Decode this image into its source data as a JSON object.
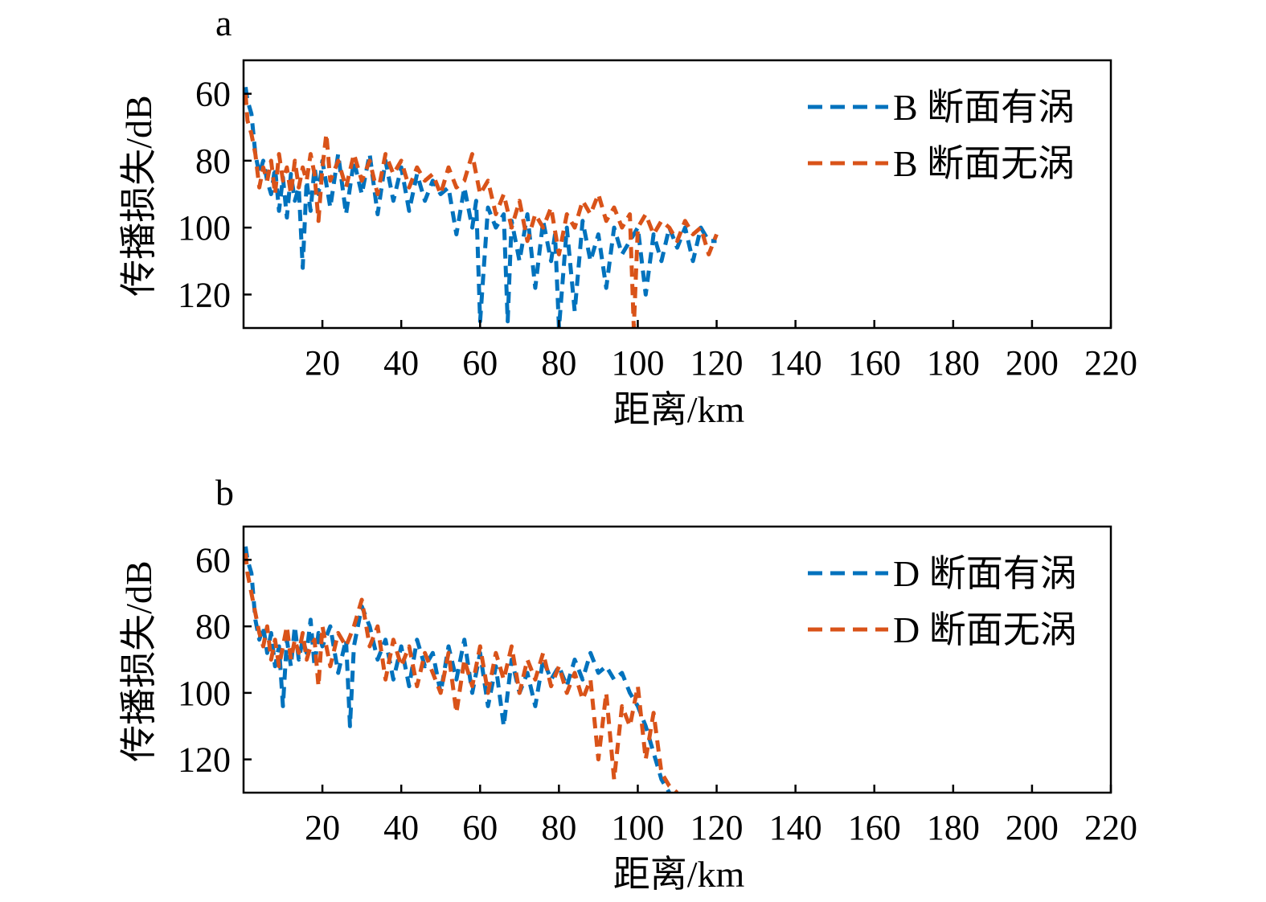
{
  "chart_data": [
    {
      "type": "line",
      "panel_label": "a",
      "xlabel": "距离/km",
      "ylabel": "传播损失/dB",
      "xlim": [
        0,
        220
      ],
      "ylim": [
        130,
        50
      ],
      "y_inverted": true,
      "xticks": [
        20,
        40,
        60,
        80,
        100,
        120,
        140,
        160,
        180,
        200,
        220
      ],
      "yticks": [
        60,
        80,
        100,
        120
      ],
      "legend_position": "top-right",
      "series": [
        {
          "name": "B 断面有涡",
          "color": "#0072BD",
          "line_style": "dashed",
          "x": [
            0.5,
            1,
            2,
            3,
            4,
            5,
            6,
            7,
            8,
            9,
            10,
            11,
            12,
            13,
            14,
            15,
            16,
            17,
            18,
            19,
            20,
            22,
            24,
            26,
            28,
            30,
            32,
            34,
            36,
            38,
            40,
            42,
            44,
            46,
            48,
            50,
            52,
            54,
            56,
            58,
            59,
            60,
            62,
            64,
            66,
            67,
            68,
            70,
            72,
            74,
            76,
            78,
            79,
            80,
            82,
            84,
            86,
            88,
            90,
            92,
            94,
            96,
            98,
            100,
            102,
            104,
            106,
            108,
            110,
            112,
            114,
            116,
            118,
            120
          ],
          "y": [
            58,
            62,
            66,
            78,
            84,
            80,
            86,
            90,
            82,
            95,
            85,
            97,
            84,
            92,
            88,
            112,
            86,
            95,
            82,
            90,
            80,
            94,
            78,
            96,
            80,
            90,
            78,
            96,
            80,
            92,
            82,
            95,
            84,
            92,
            86,
            90,
            88,
            102,
            88,
            100,
            92,
            128,
            94,
            100,
            96,
            128,
            98,
            110,
            96,
            118,
            98,
            110,
            102,
            130,
            100,
            125,
            98,
            110,
            102,
            118,
            100,
            108,
            104,
            100,
            120,
            102,
            110,
            100,
            106,
            100,
            110,
            100,
            104,
            104
          ]
        },
        {
          "name": "B 断面无涡",
          "color": "#D95319",
          "line_style": "dashed",
          "x": [
            0.5,
            1,
            2,
            3,
            4,
            5,
            6,
            7,
            8,
            9,
            10,
            11,
            12,
            13,
            14,
            15,
            16,
            17,
            18,
            19,
            20,
            21,
            22,
            24,
            26,
            28,
            30,
            32,
            34,
            36,
            38,
            40,
            42,
            44,
            46,
            48,
            50,
            52,
            54,
            56,
            58,
            60,
            62,
            64,
            66,
            68,
            70,
            72,
            74,
            76,
            78,
            80,
            82,
            84,
            86,
            88,
            90,
            92,
            94,
            96,
            98,
            99,
            100,
            102,
            104,
            106,
            108,
            110,
            112,
            114,
            116,
            118,
            120
          ],
          "y": [
            60,
            68,
            72,
            78,
            88,
            82,
            86,
            80,
            90,
            78,
            86,
            82,
            90,
            80,
            88,
            82,
            86,
            78,
            84,
            98,
            82,
            72,
            86,
            80,
            88,
            78,
            86,
            80,
            90,
            78,
            84,
            80,
            88,
            82,
            86,
            84,
            90,
            82,
            88,
            86,
            78,
            90,
            86,
            96,
            90,
            100,
            92,
            104,
            96,
            100,
            94,
            108,
            96,
            100,
            92,
            96,
            90,
            98,
            94,
            100,
            96,
            130,
            100,
            96,
            102,
            98,
            100,
            104,
            98,
            102,
            100,
            108,
            102
          ]
        }
      ]
    },
    {
      "type": "line",
      "panel_label": "b",
      "xlabel": "距离/km",
      "ylabel": "传播损失/dB",
      "xlim": [
        0,
        220
      ],
      "ylim": [
        130,
        50
      ],
      "y_inverted": true,
      "xticks": [
        20,
        40,
        60,
        80,
        100,
        120,
        140,
        160,
        180,
        200,
        220
      ],
      "yticks": [
        60,
        80,
        100,
        120
      ],
      "legend_position": "top-right",
      "series": [
        {
          "name": "D 断面有涡",
          "color": "#0072BD",
          "line_style": "dashed",
          "x": [
            0.5,
            1,
            2,
            3,
            4,
            5,
            6,
            7,
            8,
            9,
            10,
            11,
            12,
            13,
            14,
            15,
            16,
            17,
            18,
            19,
            20,
            22,
            24,
            26,
            27,
            28,
            30,
            32,
            34,
            36,
            38,
            40,
            42,
            44,
            46,
            48,
            50,
            52,
            54,
            56,
            58,
            60,
            62,
            64,
            66,
            68,
            70,
            72,
            74,
            76,
            78,
            80,
            82,
            84,
            86,
            88,
            90,
            92,
            94,
            96,
            98,
            100,
            102,
            104,
            106,
            108
          ],
          "y": [
            56,
            60,
            64,
            78,
            84,
            80,
            88,
            82,
            92,
            86,
            104,
            84,
            92,
            80,
            90,
            84,
            88,
            78,
            92,
            82,
            86,
            80,
            94,
            84,
            110,
            86,
            74,
            80,
            90,
            84,
            96,
            86,
            98,
            84,
            92,
            88,
            100,
            86,
            96,
            84,
            100,
            88,
            104,
            92,
            110,
            90,
            100,
            94,
            104,
            90,
            96,
            92,
            98,
            90,
            96,
            88,
            94,
            92,
            96,
            94,
            100,
            104,
            110,
            118,
            126,
            130
          ]
        },
        {
          "name": "D 断面无涡",
          "color": "#D95319",
          "line_style": "dashed",
          "x": [
            0.5,
            1,
            2,
            3,
            4,
            5,
            6,
            7,
            8,
            9,
            10,
            11,
            12,
            13,
            14,
            15,
            16,
            17,
            18,
            19,
            20,
            22,
            24,
            26,
            28,
            30,
            32,
            34,
            36,
            38,
            40,
            42,
            44,
            46,
            48,
            50,
            52,
            54,
            56,
            58,
            60,
            62,
            64,
            66,
            68,
            70,
            72,
            74,
            76,
            78,
            80,
            82,
            84,
            86,
            88,
            90,
            92,
            94,
            96,
            98,
            100,
            102,
            104,
            106,
            108,
            110
          ],
          "y": [
            58,
            64,
            70,
            76,
            82,
            86,
            80,
            90,
            84,
            92,
            86,
            80,
            90,
            84,
            88,
            82,
            90,
            86,
            84,
            98,
            80,
            92,
            82,
            86,
            80,
            72,
            86,
            80,
            96,
            84,
            92,
            86,
            98,
            88,
            94,
            100,
            88,
            106,
            90,
            98,
            86,
            100,
            88,
            96,
            86,
            100,
            90,
            96,
            88,
            98,
            92,
            100,
            94,
            102,
            96,
            120,
            100,
            126,
            104,
            110,
            98,
            120,
            106,
            124,
            128,
            130
          ]
        }
      ]
    }
  ]
}
